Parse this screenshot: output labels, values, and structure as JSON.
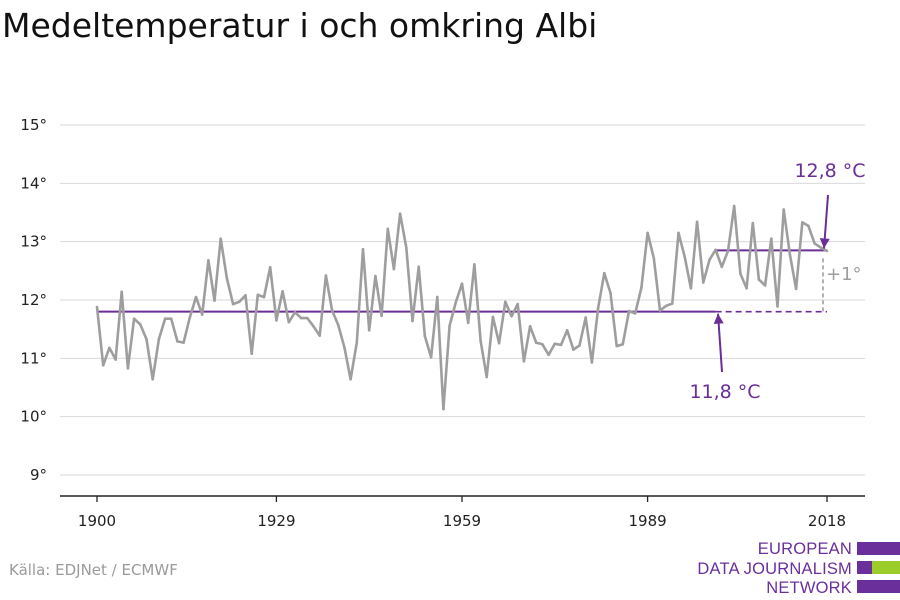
{
  "title": "Medeltemperatur i och omkring Albi",
  "source": "Källa: EDJNet / ECMWF",
  "logo": {
    "line1": "EUROPEAN",
    "line2": "DATA JOURNALISM",
    "line3": "NETWORK"
  },
  "colors": {
    "series": "#9e9e9e",
    "accent": "#6b2e96",
    "logo_purple": "#6a2f9a",
    "logo_green": "#9acd2a",
    "grid": "#d9d9d9",
    "axis": "#222222"
  },
  "chart_data": {
    "type": "line",
    "title": "Medeltemperatur i och omkring Albi",
    "xlabel": "",
    "ylabel": "",
    "xlim": [
      1900,
      2018
    ],
    "ylim": [
      9,
      15
    ],
    "x_ticks": [
      1900,
      1929,
      1959,
      1989,
      2018
    ],
    "x_tick_labels": [
      "1900",
      "1929",
      "1959",
      "1989",
      "2018"
    ],
    "y_ticks": [
      9,
      10,
      11,
      12,
      13,
      14,
      15
    ],
    "y_tick_labels": [
      "9°",
      "10°",
      "11°",
      "12°",
      "13°",
      "14°",
      "15°"
    ],
    "grid": true,
    "series": [
      {
        "x": [
          1900,
          1901,
          1902,
          1903,
          1904,
          1905,
          1906,
          1907,
          1908,
          1909,
          1910,
          1911,
          1912,
          1913,
          1914,
          1915,
          1916,
          1917,
          1918,
          1919,
          1920,
          1921,
          1922,
          1923,
          1924,
          1925,
          1926,
          1927,
          1928,
          1929,
          1930,
          1931,
          1932,
          1933,
          1934,
          1935,
          1936,
          1937,
          1938,
          1939,
          1940,
          1941,
          1942,
          1943,
          1944,
          1945,
          1946,
          1947,
          1948,
          1949,
          1950,
          1951,
          1952,
          1953,
          1954,
          1955,
          1956,
          1957,
          1958,
          1959,
          1960,
          1961,
          1962,
          1963,
          1964,
          1965,
          1966,
          1967,
          1968,
          1969,
          1970,
          1971,
          1972,
          1973,
          1974,
          1975,
          1976,
          1977,
          1978,
          1979,
          1980,
          1981,
          1982,
          1983,
          1984,
          1985,
          1986,
          1987,
          1988,
          1989,
          1990,
          1991,
          1992,
          1993,
          1994,
          1995,
          1996,
          1997,
          1998,
          1999,
          2000,
          2001,
          2002,
          2003,
          2004,
          2005,
          2006,
          2007,
          2008,
          2009,
          2010,
          2011,
          2012,
          2013,
          2014,
          2015,
          2016,
          2017,
          2018
        ],
        "values": [
          11.88,
          10.88,
          11.18,
          10.98,
          12.14,
          10.83,
          11.68,
          11.58,
          11.33,
          10.64,
          11.33,
          11.68,
          11.68,
          11.29,
          11.27,
          11.7,
          12.05,
          11.75,
          12.68,
          11.99,
          13.05,
          12.37,
          11.93,
          11.97,
          12.08,
          11.08,
          12.09,
          12.05,
          12.56,
          11.65,
          12.15,
          11.62,
          11.79,
          11.69,
          11.69,
          11.55,
          11.39,
          12.42,
          11.82,
          11.57,
          11.18,
          10.64,
          11.27,
          12.87,
          11.48,
          12.41,
          11.73,
          13.22,
          12.53,
          13.48,
          12.9,
          11.64,
          12.57,
          11.38,
          11.02,
          12.05,
          10.13,
          11.56,
          11.96,
          12.28,
          11.61,
          12.61,
          11.3,
          10.68,
          11.71,
          11.26,
          11.97,
          11.72,
          11.93,
          10.95,
          11.55,
          11.27,
          11.24,
          11.06,
          11.25,
          11.23,
          11.48,
          11.15,
          11.22,
          11.7,
          10.93,
          11.86,
          12.46,
          12.12,
          11.21,
          11.24,
          11.81,
          11.77,
          12.21,
          13.15,
          12.72,
          11.82,
          11.9,
          11.94,
          13.15,
          12.74,
          12.2,
          13.34,
          12.3,
          12.69,
          12.86,
          12.57,
          12.84,
          13.61,
          12.45,
          12.2,
          13.32,
          12.35,
          12.25,
          13.05,
          11.89,
          13.55,
          12.78,
          12.19,
          13.33,
          13.27,
          12.97,
          12.9,
          12.84
        ]
      }
    ],
    "annotations": [
      {
        "text": "11,8 °C",
        "value": 11.8,
        "from_year": 1900,
        "to_year": 2000
      },
      {
        "text": "12,8 °C",
        "value": 12.85,
        "from_year": 2000,
        "to_year": 2018
      },
      {
        "text": "+1°",
        "value": 1
      }
    ]
  }
}
